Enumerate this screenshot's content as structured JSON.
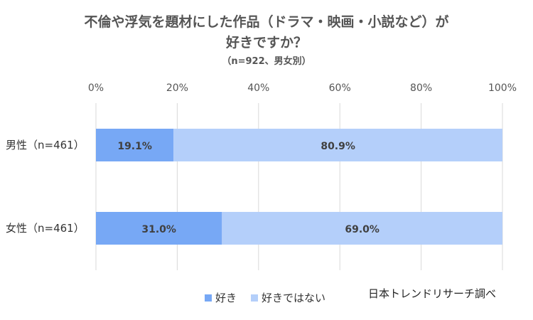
{
  "chart_data": {
    "type": "bar",
    "orientation": "horizontal",
    "stacked": true,
    "title_line1": "不倫や浮気を題材にした作品（ドラマ・映画・小説など）が",
    "title_line2": "好きですか？",
    "subtitle": "（n=922、男女別）",
    "categories": [
      "男性（n=461）",
      "女性（n=461）"
    ],
    "series": [
      {
        "name": "好き",
        "values": [
          19.1,
          31.0
        ],
        "labels": [
          "19.1%",
          "31.0%"
        ],
        "color": "#77A8F5"
      },
      {
        "name": "好きではない",
        "values": [
          80.9,
          69.0
        ],
        "labels": [
          "80.9%",
          "69.0%"
        ],
        "color": "#B4CFFA"
      }
    ],
    "xlim": [
      0,
      100
    ],
    "xticks": [
      "0%",
      "20%",
      "40%",
      "60%",
      "80%",
      "100%"
    ],
    "grid": true,
    "legend_position": "bottom",
    "source": "日本トレンドリサーチ調べ"
  }
}
